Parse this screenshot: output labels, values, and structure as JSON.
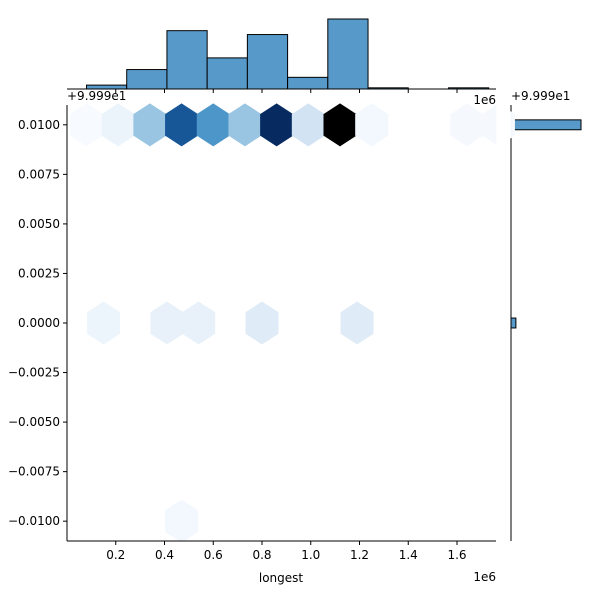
{
  "chart_data": {
    "type": "hexbin-jointplot",
    "xlabel": "longest",
    "ylabel": "",
    "x_offset_label": "1e6",
    "y_offset_label": "+9.999e1",
    "xlim": [
      0.0,
      1.76
    ],
    "ylim": [
      -0.011,
      0.011
    ],
    "x_ticks": [
      0.2,
      0.4,
      0.6,
      0.8,
      1.0,
      1.2,
      1.4,
      1.6
    ],
    "x_tick_labels": [
      "0.2",
      "0.4",
      "0.6",
      "0.8",
      "1.0",
      "1.2",
      "1.4",
      "1.6"
    ],
    "y_ticks": [
      -0.01,
      -0.0075,
      -0.005,
      -0.0025,
      0.0,
      0.0025,
      0.005,
      0.0075,
      0.01
    ],
    "y_tick_labels": [
      "−0.0100",
      "−0.0075",
      "−0.0050",
      "−0.0025",
      "0.0000",
      "0.0025",
      "0.0050",
      "0.0075",
      "0.0100"
    ],
    "hexbins": [
      {
        "x": 0.08,
        "y": 0.01,
        "count": 0
      },
      {
        "x": 0.21,
        "y": 0.01,
        "count": 0.05
      },
      {
        "x": 0.34,
        "y": 0.01,
        "count": 0.3
      },
      {
        "x": 0.47,
        "y": 0.01,
        "count": 0.68
      },
      {
        "x": 0.6,
        "y": 0.01,
        "count": 0.48
      },
      {
        "x": 0.73,
        "y": 0.01,
        "count": 0.3
      },
      {
        "x": 0.86,
        "y": 0.01,
        "count": 0.82
      },
      {
        "x": 0.99,
        "y": 0.01,
        "count": 0.15
      },
      {
        "x": 1.12,
        "y": 0.01,
        "count": 1.0
      },
      {
        "x": 1.25,
        "y": 0.01,
        "count": 0.02
      },
      {
        "x": 1.64,
        "y": 0.01,
        "count": 0.01
      },
      {
        "x": 1.77,
        "y": 0.01,
        "count": 0.01
      },
      {
        "x": 0.15,
        "y": 0.0,
        "count": 0.04
      },
      {
        "x": 0.41,
        "y": 0.0,
        "count": 0.06
      },
      {
        "x": 0.54,
        "y": 0.0,
        "count": 0.06
      },
      {
        "x": 0.8,
        "y": 0.0,
        "count": 0.1
      },
      {
        "x": 1.19,
        "y": 0.0,
        "count": 0.1
      },
      {
        "x": 0.47,
        "y": -0.01,
        "count": 0.02
      }
    ],
    "x_marginal_histogram": {
      "bin_edges": [
        0.08,
        0.245,
        0.41,
        0.575,
        0.74,
        0.905,
        1.07,
        1.235,
        1.4,
        1.565,
        1.73
      ],
      "counts": [
        1,
        5,
        15,
        8,
        14,
        3,
        18,
        0.3,
        0,
        0.3
      ],
      "color": "#5799c9"
    },
    "y_marginal_histogram": {
      "bins": [
        {
          "y_low": 0.00975,
          "y_high": 0.01025,
          "count": 100
        },
        {
          "y_low": -0.00025,
          "y_high": 0.00025,
          "count": 7
        }
      ],
      "color": "#5799c9"
    },
    "colormap": [
      "#f7fbff",
      "#c6dbef",
      "#6baed6",
      "#2171b5",
      "#08306b",
      "#000000"
    ]
  }
}
